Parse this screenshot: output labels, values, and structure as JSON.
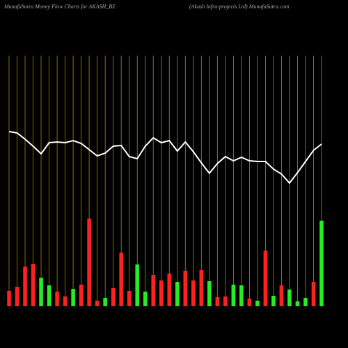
{
  "chart_data": {
    "type": "money-flow",
    "title": "MunafaSutra  Money Flow  Charts for AKASH_BE",
    "subtitle": "(Akash Infra-projects Ltd) MunafaSutra.com",
    "categories": [
      null,
      null,
      null,
      null,
      null,
      null,
      null,
      null,
      null,
      null,
      null,
      null,
      null,
      null,
      null,
      null,
      null,
      null,
      null,
      null,
      null,
      null,
      null,
      null,
      null,
      null,
      null,
      null,
      null,
      null,
      null,
      null,
      null,
      null,
      null,
      null,
      null,
      null,
      null,
      null
    ],
    "bar_values": [
      22,
      28,
      57,
      61,
      41,
      30,
      21,
      14,
      25,
      31,
      126,
      8,
      12,
      26,
      77,
      22,
      60,
      21,
      45,
      37,
      47,
      35,
      51,
      37,
      52,
      36,
      13,
      14,
      31,
      30,
      11,
      8,
      80,
      15,
      30,
      24,
      7,
      12,
      35,
      123
    ],
    "bar_colors": [
      "#ff2020",
      "#ff2020",
      "#ff2020",
      "#ff2020",
      "#22ee22",
      "#22ee22",
      "#ff2020",
      "#ff2020",
      "#22ee22",
      "#ff2020",
      "#ff2020",
      "#ff2020",
      "#22ee22",
      "#ff2020",
      "#ff2020",
      "#ff2020",
      "#22ee22",
      "#22ee22",
      "#ff2020",
      "#ff2020",
      "#ff2020",
      "#22ee22",
      "#ff2020",
      "#ff2020",
      "#ff2020",
      "#22ee22",
      "#ff2020",
      "#ff2020",
      "#22ee22",
      "#22ee22",
      "#ff2020",
      "#22ee22",
      "#ff2020",
      "#22ee22",
      "#ff2020",
      "#22ee22",
      "#22ee22",
      "#22ee22",
      "#ff2020",
      "#22ee22"
    ],
    "line_values": [
      251,
      249,
      240,
      230,
      219,
      235,
      236,
      235,
      238,
      234,
      225,
      216,
      220,
      230,
      231,
      215,
      212,
      230,
      242,
      235,
      238,
      223,
      236,
      222,
      206,
      191,
      205,
      215,
      209,
      214,
      209,
      208,
      208,
      197,
      190,
      177,
      192,
      208,
      224,
      233
    ],
    "line_color": "#ffffff",
    "grid_color": "#b8860b",
    "ylim": [
      0,
      360
    ]
  }
}
